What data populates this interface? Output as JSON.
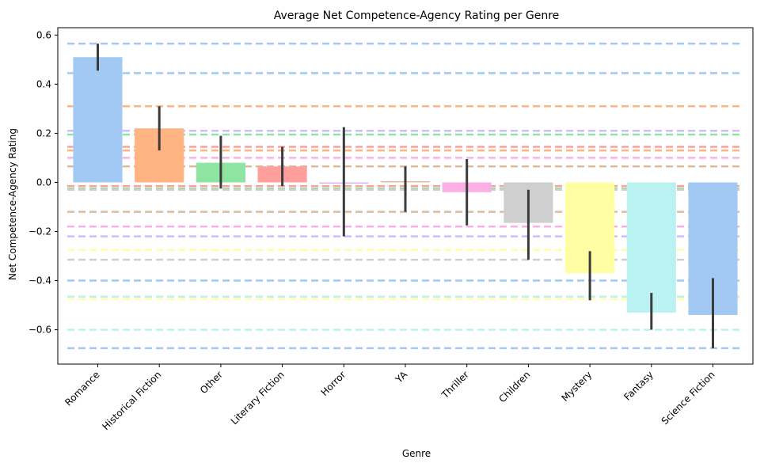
{
  "chart_data": {
    "type": "bar",
    "title": "Average Net Competence-Agency Rating per Genre",
    "xlabel": "Genre",
    "ylabel": "Net Competence-Agency Rating",
    "ylim": [
      -0.74,
      0.63
    ],
    "yticks": [
      -0.6,
      -0.4,
      -0.2,
      0.0,
      0.2,
      0.4,
      0.6
    ],
    "ytick_labels": [
      "−0.6",
      "−0.4",
      "−0.2",
      "0.0",
      "0.2",
      "0.4",
      "0.6"
    ],
    "grid": false,
    "legend": "none",
    "categories": [
      "Romance",
      "Historical Fiction",
      "Other",
      "Literary Fiction",
      "Horror",
      "YA",
      "Thriller",
      "Children",
      "Mystery",
      "Fantasy",
      "Science Fiction"
    ],
    "values": [
      0.51,
      0.22,
      0.08,
      0.065,
      -0.005,
      0.005,
      -0.04,
      -0.165,
      -0.37,
      -0.53,
      -0.54
    ],
    "error_low": [
      0.455,
      0.13,
      -0.025,
      -0.015,
      -0.22,
      -0.12,
      -0.175,
      -0.315,
      -0.48,
      -0.6,
      -0.675
    ],
    "error_high": [
      0.565,
      0.31,
      0.19,
      0.145,
      0.225,
      0.065,
      0.095,
      -0.03,
      -0.28,
      -0.45,
      -0.39
    ],
    "colors": [
      "#a1c9f4",
      "#ffb482",
      "#8de5a1",
      "#ff9f9b",
      "#d0bbff",
      "#debb9b",
      "#fab0e4",
      "#cfcfcf",
      "#fffea3",
      "#b9f2f0",
      "#a1c9f4"
    ],
    "reference_lines": [
      {
        "value": 0.565,
        "color": "#a1c9f4"
      },
      {
        "value": 0.445,
        "color": "#a1c9f4"
      },
      {
        "value": 0.31,
        "color": "#ffb482"
      },
      {
        "value": 0.21,
        "color": "#d0bbff"
      },
      {
        "value": 0.195,
        "color": "#8de5a1"
      },
      {
        "value": 0.145,
        "color": "#ff9f9b"
      },
      {
        "value": 0.13,
        "color": "#ffb482"
      },
      {
        "value": 0.1,
        "color": "#fab0e4"
      },
      {
        "value": 0.065,
        "color": "#debb9b"
      },
      {
        "value": -0.015,
        "color": "#ff9f9b"
      },
      {
        "value": -0.025,
        "color": "#8de5a1"
      },
      {
        "value": -0.03,
        "color": "#cfcfcf"
      },
      {
        "value": -0.12,
        "color": "#debb9b"
      },
      {
        "value": -0.18,
        "color": "#fab0e4"
      },
      {
        "value": -0.22,
        "color": "#d0bbff"
      },
      {
        "value": -0.275,
        "color": "#fffea3"
      },
      {
        "value": -0.315,
        "color": "#cfcfcf"
      },
      {
        "value": -0.4,
        "color": "#a1c9f4"
      },
      {
        "value": -0.465,
        "color": "#b9f2f0"
      },
      {
        "value": -0.475,
        "color": "#fffea3"
      },
      {
        "value": -0.6,
        "color": "#b9f2f0"
      },
      {
        "value": -0.675,
        "color": "#a1c9f4"
      }
    ]
  }
}
